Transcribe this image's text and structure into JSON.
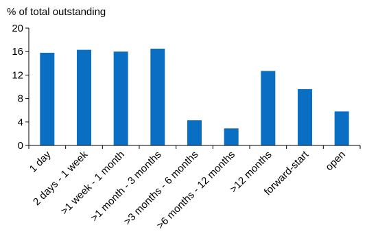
{
  "chart_data": {
    "type": "bar",
    "title": "",
    "xlabel": "",
    "ylabel": "% of total outstanding",
    "ylim": [
      0,
      20
    ],
    "yticks": [
      0,
      4,
      8,
      12,
      16,
      20
    ],
    "categories": [
      "1 day",
      "2 days - 1 week",
      ">1 week - 1 month",
      ">1 month - 3 months",
      ">3 months - 6 months",
      ">6 months - 12 months",
      ">12 months",
      "forward-start",
      "open"
    ],
    "values": [
      15.8,
      16.3,
      16.0,
      16.5,
      4.3,
      2.9,
      12.7,
      9.6,
      5.8
    ],
    "bar_color": "#0a6fc2",
    "grid": false,
    "legend": "none"
  }
}
